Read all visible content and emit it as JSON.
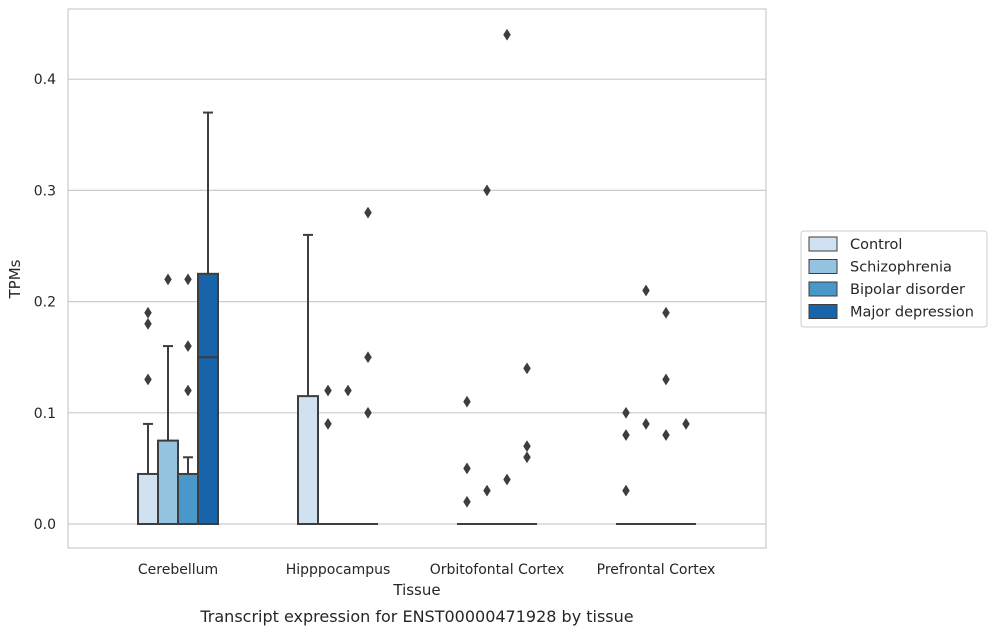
{
  "caption": "Transcript expression for ENST00000471928 by tissue",
  "chart_data": {
    "type": "box",
    "xlabel": "Tissue",
    "ylabel": "TPMs",
    "ylim": [
      -0.021,
      0.465
    ],
    "yticks": [
      0.0,
      0.1,
      0.2,
      0.3,
      0.4
    ],
    "ytick_labels": [
      "0.0",
      "0.1",
      "0.2",
      "0.3",
      "0.4"
    ],
    "grid": "horizontal",
    "legend_position": "right",
    "categories": [
      "Cerebellum",
      "Hipppocampus",
      "Orbitofontal Cortex",
      "Prefrontal Cortex"
    ],
    "series": [
      {
        "name": "Control",
        "color": "#d0e1f2",
        "boxes": [
          {
            "q1": 0.0,
            "median": 0.0,
            "q3": 0.045,
            "whisker_low": 0.0,
            "whisker_high": 0.09,
            "outliers": [
              0.13,
              0.18,
              0.19
            ]
          },
          {
            "q1": 0.0,
            "median": 0.0,
            "q3": 0.115,
            "whisker_low": 0.0,
            "whisker_high": 0.26,
            "outliers": []
          },
          {
            "q1": 0.0,
            "median": 0.0,
            "q3": 0.0,
            "whisker_low": 0.0,
            "whisker_high": 0.0,
            "outliers": [
              0.02,
              0.05,
              0.11
            ]
          },
          {
            "q1": 0.0,
            "median": 0.0,
            "q3": 0.0,
            "whisker_low": 0.0,
            "whisker_high": 0.0,
            "outliers": [
              0.03,
              0.08,
              0.1
            ]
          }
        ]
      },
      {
        "name": "Schizophrenia",
        "color": "#94c4df",
        "boxes": [
          {
            "q1": 0.0,
            "median": 0.0,
            "q3": 0.075,
            "whisker_low": 0.0,
            "whisker_high": 0.16,
            "outliers": [
              0.22
            ]
          },
          {
            "q1": 0.0,
            "median": 0.0,
            "q3": 0.0,
            "whisker_low": 0.0,
            "whisker_high": 0.0,
            "outliers": [
              0.09,
              0.12
            ]
          },
          {
            "q1": 0.0,
            "median": 0.0,
            "q3": 0.0,
            "whisker_low": 0.0,
            "whisker_high": 0.0,
            "outliers": [
              0.03,
              0.3
            ]
          },
          {
            "q1": 0.0,
            "median": 0.0,
            "q3": 0.0,
            "whisker_low": 0.0,
            "whisker_high": 0.0,
            "outliers": [
              0.09,
              0.21
            ]
          }
        ]
      },
      {
        "name": "Bipolar disorder",
        "color": "#4a98c9",
        "boxes": [
          {
            "q1": 0.0,
            "median": 0.0,
            "q3": 0.045,
            "whisker_low": 0.0,
            "whisker_high": 0.06,
            "outliers": [
              0.12,
              0.16,
              0.22
            ]
          },
          {
            "q1": 0.0,
            "median": 0.0,
            "q3": 0.0,
            "whisker_low": 0.0,
            "whisker_high": 0.0,
            "outliers": [
              0.12
            ]
          },
          {
            "q1": 0.0,
            "median": 0.0,
            "q3": 0.0,
            "whisker_low": 0.0,
            "whisker_high": 0.0,
            "outliers": [
              0.04,
              0.44
            ]
          },
          {
            "q1": 0.0,
            "median": 0.0,
            "q3": 0.0,
            "whisker_low": 0.0,
            "whisker_high": 0.0,
            "outliers": [
              0.08,
              0.13,
              0.19
            ]
          }
        ]
      },
      {
        "name": "Major depression",
        "color": "#1764ab",
        "boxes": [
          {
            "q1": 0.0,
            "median": 0.15,
            "q3": 0.225,
            "whisker_low": 0.0,
            "whisker_high": 0.37,
            "outliers": []
          },
          {
            "q1": 0.0,
            "median": 0.0,
            "q3": 0.0,
            "whisker_low": 0.0,
            "whisker_high": 0.0,
            "outliers": [
              0.1,
              0.15,
              0.28
            ]
          },
          {
            "q1": 0.0,
            "median": 0.0,
            "q3": 0.0,
            "whisker_low": 0.0,
            "whisker_high": 0.0,
            "outliers": [
              0.06,
              0.07,
              0.14
            ]
          },
          {
            "q1": 0.0,
            "median": 0.0,
            "q3": 0.0,
            "whisker_low": 0.0,
            "whisker_high": 0.0,
            "outliers": [
              0.09
            ]
          }
        ]
      }
    ]
  }
}
